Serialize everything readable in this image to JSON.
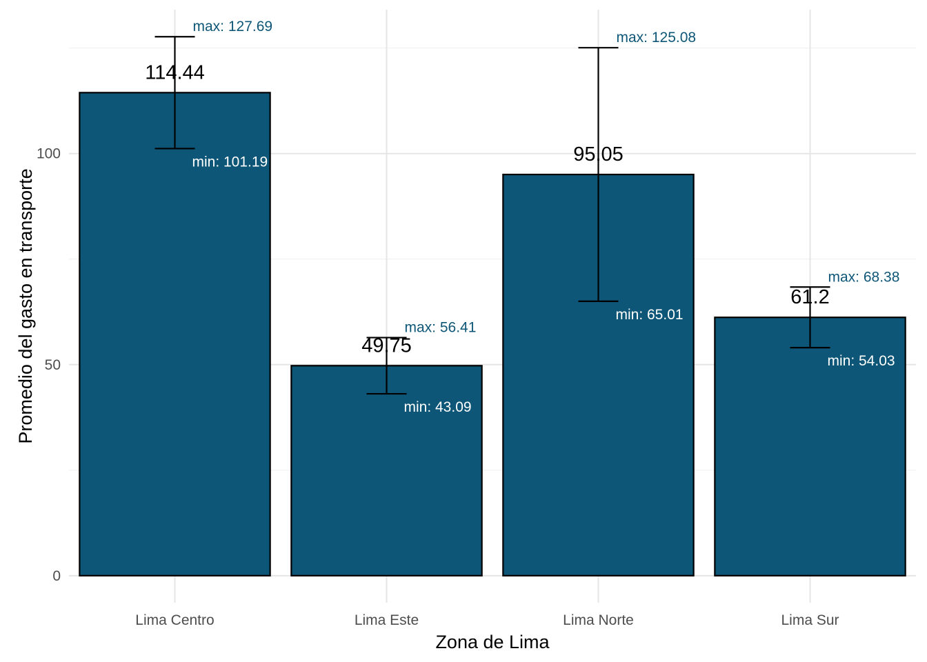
{
  "chart_data": {
    "type": "bar",
    "title": "",
    "xlabel": "Zona de Lima",
    "ylabel": "Promedio del gasto en transporte",
    "categories": [
      "Lima Centro",
      "Lima Este",
      "Lima Norte",
      "Lima Sur"
    ],
    "values": [
      114.44,
      49.75,
      95.05,
      61.2
    ],
    "value_labels": [
      "114.44",
      "49.75",
      "95.05",
      "61.2"
    ],
    "max": [
      127.69,
      56.41,
      125.08,
      68.38
    ],
    "min": [
      101.19,
      43.09,
      65.01,
      54.03
    ],
    "max_labels": [
      "max: 127.69",
      "max: 56.41",
      "max: 125.08",
      "max: 68.38"
    ],
    "min_labels": [
      "min: 101.19",
      "min: 43.09",
      "min: 65.01",
      "min: 54.03"
    ],
    "ylim": [
      -6.4,
      134.1
    ],
    "yticks": [
      0,
      50,
      100
    ],
    "ytick_labels": [
      "0",
      "50",
      "100"
    ],
    "grid": true,
    "legend": "none",
    "colors": {
      "bar_fill": "#0d5677",
      "bar_outline": "#000000",
      "max_label": "#0d5677",
      "min_label": "#ffffff"
    }
  }
}
